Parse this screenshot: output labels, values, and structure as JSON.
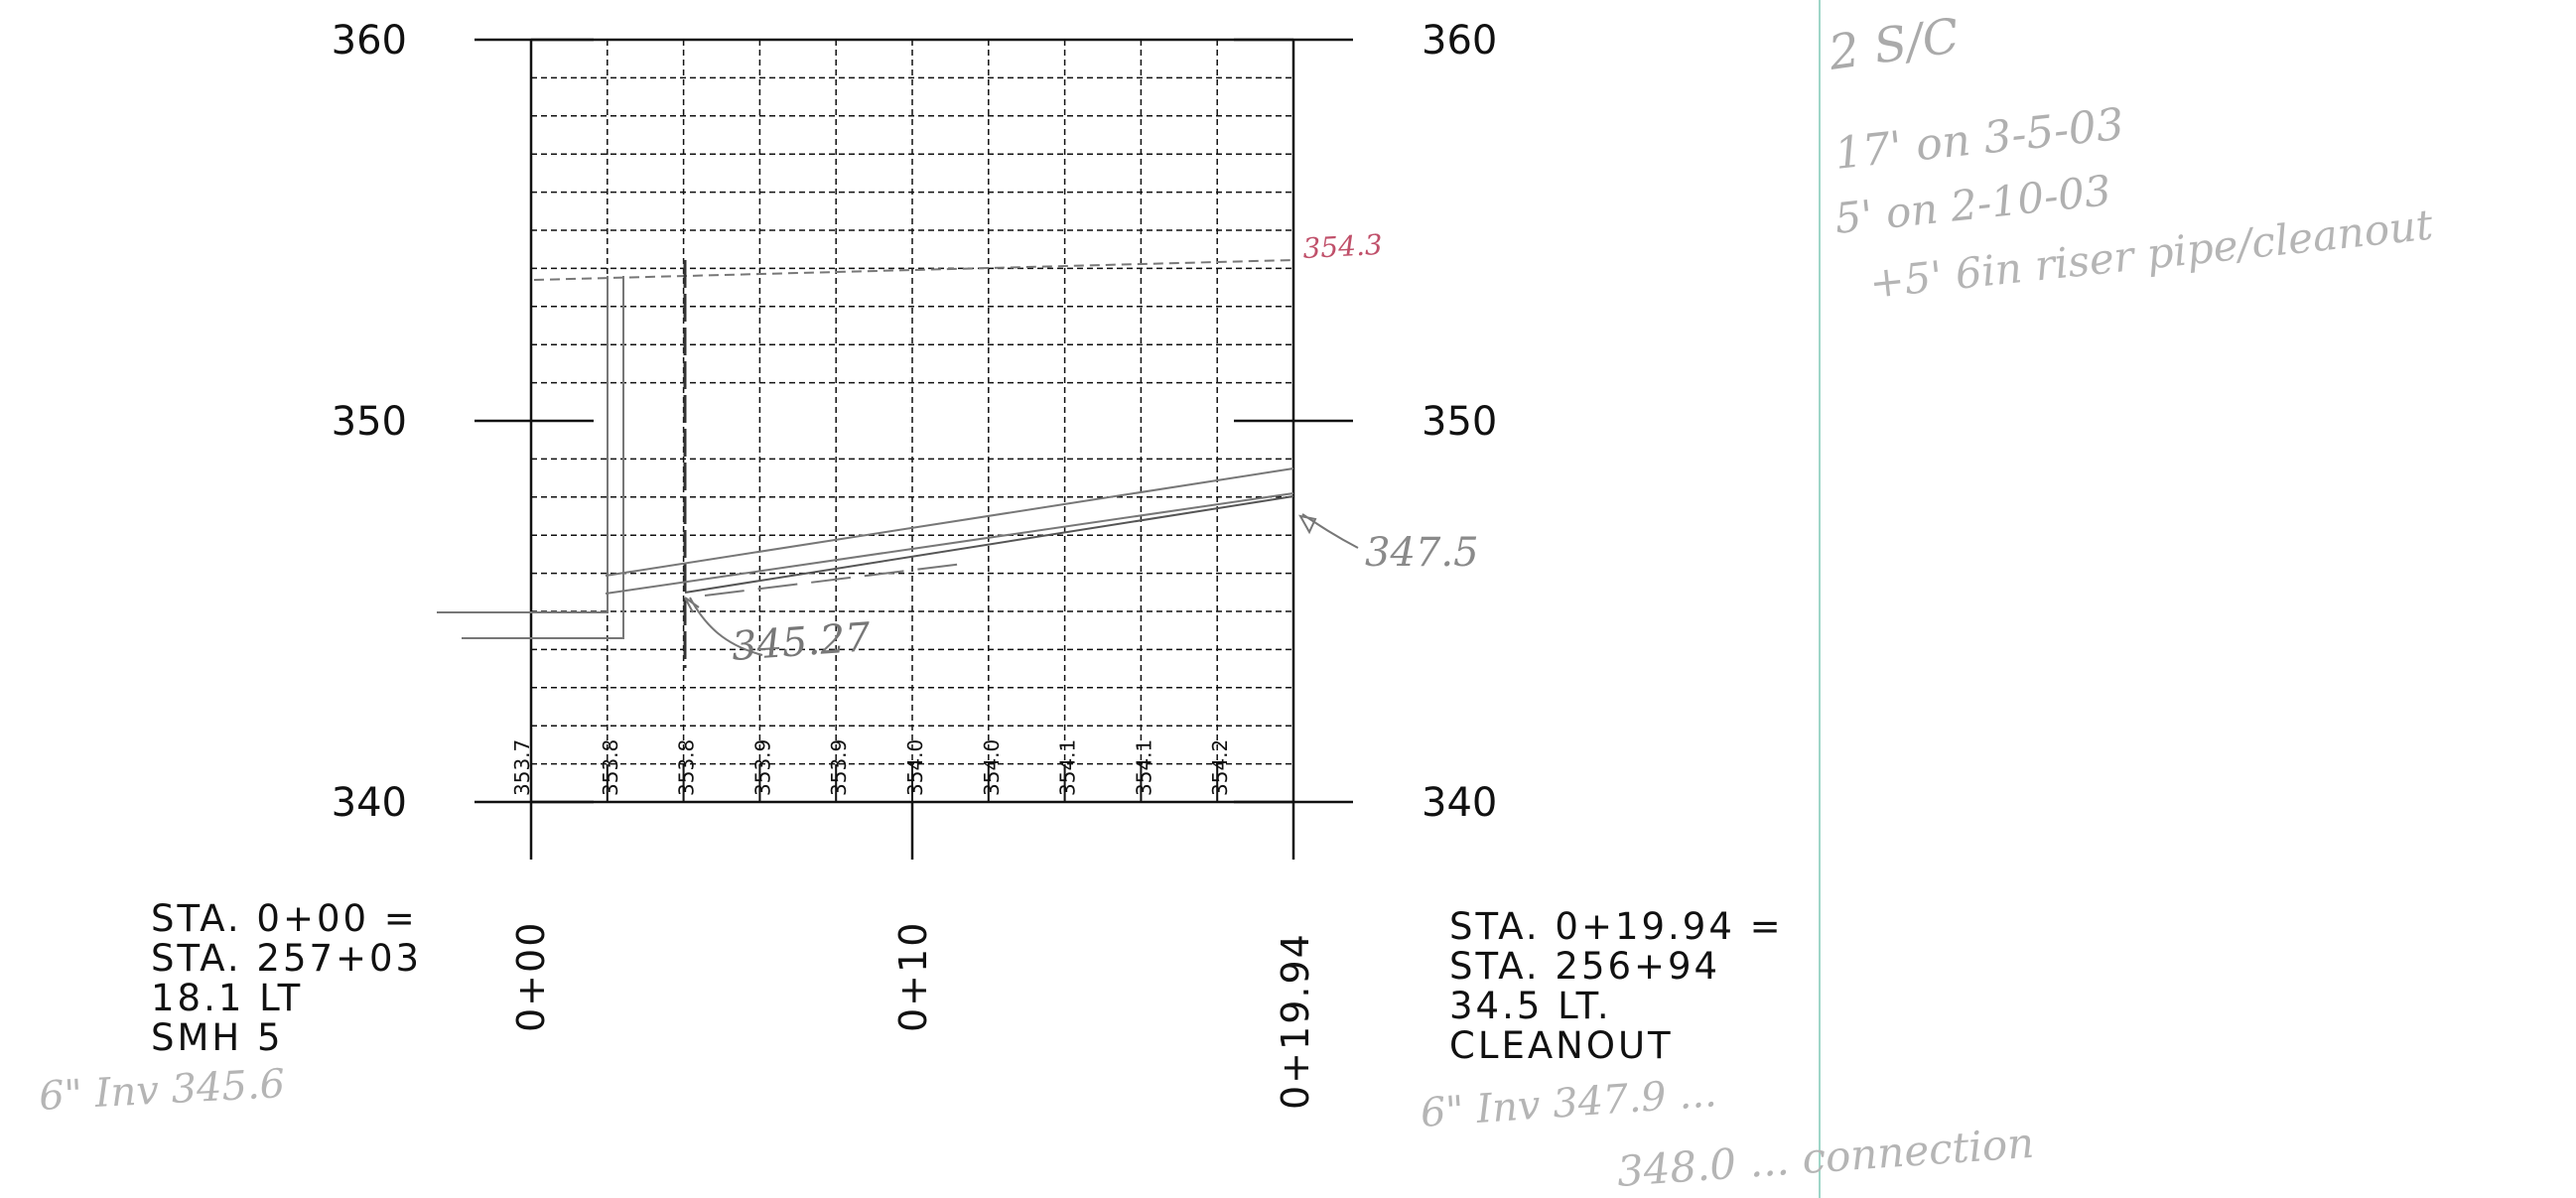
{
  "profile": {
    "elevation_labels": [
      "360",
      "350",
      "340"
    ],
    "station_labels": [
      "0+00",
      "0+10",
      "0+19.94"
    ],
    "ground_elevations": [
      "353.7",
      "353.8",
      "353.8",
      "353.9",
      "353.9",
      "354.0",
      "354.0",
      "354.1",
      "354.1",
      "354.2"
    ],
    "left_block": [
      "STA. 0+00 =",
      "STA. 257+03",
      "18.1 LT",
      "SMH 5"
    ],
    "right_block": [
      "STA. 0+19.94 =",
      "STA. 256+94",
      "34.5 LT.",
      "CLEANOUT"
    ]
  },
  "handwritten": {
    "rim_elev": "354.3",
    "invert_right": "347.5",
    "invert_mid": "345.27",
    "left_inv": "6\" Inv 345.6",
    "right_inv": "6\" Inv 347.9 ...",
    "bottom_right": "348.0 ... connection",
    "note_title": "2 S/C",
    "note_line1": "17' on 3-5-03",
    "note_line2": "5' on 2-10-03",
    "note_line3": "+5' 6in riser pipe/cleanout"
  },
  "colors": {
    "ink": "#111111",
    "pencil": "#8a8a8a",
    "rim_note": "#c0506a",
    "border_line": "#9fd6c8"
  }
}
